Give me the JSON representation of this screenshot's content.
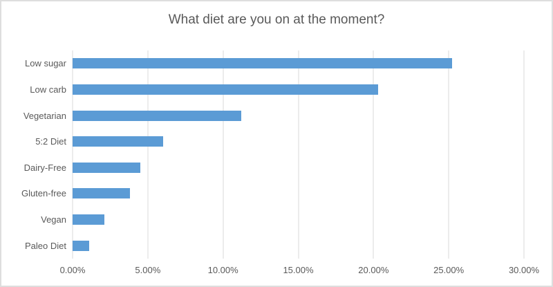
{
  "chart_data": {
    "type": "bar",
    "orientation": "horizontal",
    "title": "What diet are you on at the moment?",
    "categories": [
      "Low sugar",
      "Low carb",
      "Vegetarian",
      "5:2 Diet",
      "Dairy-Free",
      "Gluten-free",
      "Vegan",
      "Paleo Diet"
    ],
    "values": [
      25.2,
      20.3,
      11.2,
      6.0,
      4.5,
      3.8,
      2.1,
      1.1
    ],
    "unit": "%",
    "xlabel": "",
    "ylabel": "",
    "xlim": [
      0,
      30
    ],
    "x_ticks": [
      {
        "label": "0.00%",
        "value": 0
      },
      {
        "label": "5.00%",
        "value": 5
      },
      {
        "label": "10.00%",
        "value": 10
      },
      {
        "label": "15.00%",
        "value": 15
      },
      {
        "label": "20.00%",
        "value": 20
      },
      {
        "label": "25.00%",
        "value": 25
      },
      {
        "label": "30.00%",
        "value": 30
      }
    ],
    "grid": "vertical",
    "legend": "none",
    "colors": {
      "bar": "#5b9bd5",
      "text": "#595959",
      "gridline": "#d9d9d9",
      "border": "#dedede",
      "background": "#ffffff"
    }
  }
}
